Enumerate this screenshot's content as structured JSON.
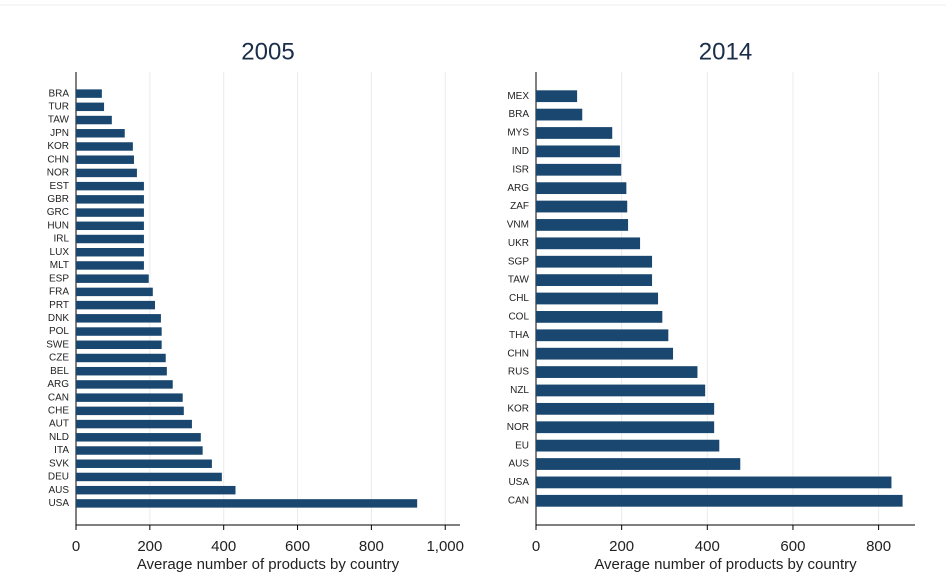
{
  "chart_data": [
    {
      "type": "bar",
      "orientation": "horizontal",
      "title": "2005",
      "x_label": "Average number of products by country",
      "color": "#1a476f",
      "grid": true,
      "categories": [
        "BRA",
        "TUR",
        "TAW",
        "JPN",
        "KOR",
        "CHN",
        "NOR",
        "EST",
        "GBR",
        "GRC",
        "HUN",
        "IRL",
        "LUX",
        "MLT",
        "ESP",
        "FRA",
        "PRT",
        "DNK",
        "POL",
        "SWE",
        "CZE",
        "BEL",
        "ARG",
        "CAN",
        "CHE",
        "AUT",
        "NLD",
        "ITA",
        "SVK",
        "DEU",
        "AUS",
        "USA"
      ],
      "values": [
        70,
        76,
        97,
        132,
        154,
        157,
        165,
        184,
        184,
        184,
        184,
        184,
        184,
        184,
        197,
        208,
        214,
        230,
        232,
        232,
        243,
        246,
        262,
        289,
        292,
        314,
        338,
        343,
        368,
        395,
        432,
        924
      ],
      "xlim": [
        0,
        1040
      ],
      "xticks": [
        0,
        200,
        400,
        600,
        800,
        {
          "value": 1000,
          "label": "1,000"
        }
      ]
    },
    {
      "type": "bar",
      "orientation": "horizontal",
      "title": "2014",
      "x_label": "Average number of products by country",
      "color": "#1a476f",
      "grid": true,
      "categories": [
        "MEX",
        "BRA",
        "MYS",
        "IND",
        "ISR",
        "ARG",
        "ZAF",
        "VNM",
        "UKR",
        "SGP",
        "TAW",
        "CHL",
        "COL",
        "THA",
        "CHN",
        "RUS",
        "NZL",
        "KOR",
        "NOR",
        "EU",
        "AUS",
        "USA",
        "CAN"
      ],
      "values": [
        96,
        108,
        178,
        196,
        199,
        211,
        213,
        215,
        243,
        271,
        271,
        285,
        295,
        309,
        320,
        377,
        395,
        416,
        416,
        428,
        477,
        830,
        856
      ],
      "xlim": [
        0,
        885
      ],
      "xticks": [
        0,
        200,
        400,
        600,
        800
      ]
    }
  ]
}
